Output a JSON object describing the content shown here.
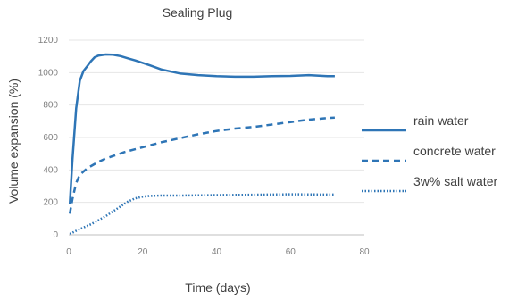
{
  "chart_data": {
    "type": "line",
    "title": "Sealing Plug",
    "xlabel": "Time (days)",
    "ylabel": "Volume expansion (%)",
    "xlim": [
      0,
      80
    ],
    "ylim": [
      0,
      1200
    ],
    "xticks": [
      "0",
      "20",
      "40",
      "60",
      "80"
    ],
    "yticks": [
      "0",
      "200",
      "400",
      "600",
      "800",
      "1000",
      "1200"
    ],
    "grid": "horizontal",
    "legend_position": "right",
    "series": [
      {
        "name": "rain water",
        "style": "solid",
        "color": "#2e75b6",
        "points": [
          [
            0.3,
            190
          ],
          [
            1,
            460
          ],
          [
            2,
            780
          ],
          [
            3,
            950
          ],
          [
            4,
            1010
          ],
          [
            5,
            1040
          ],
          [
            6,
            1070
          ],
          [
            7,
            1095
          ],
          [
            8,
            1105
          ],
          [
            10,
            1112
          ],
          [
            12,
            1110
          ],
          [
            14,
            1102
          ],
          [
            16,
            1088
          ],
          [
            18,
            1075
          ],
          [
            20,
            1060
          ],
          [
            22,
            1045
          ],
          [
            25,
            1020
          ],
          [
            30,
            995
          ],
          [
            35,
            985
          ],
          [
            40,
            978
          ],
          [
            45,
            975
          ],
          [
            50,
            975
          ],
          [
            55,
            978
          ],
          [
            60,
            980
          ],
          [
            65,
            985
          ],
          [
            70,
            978
          ],
          [
            72,
            978
          ]
        ]
      },
      {
        "name": "concrete water",
        "style": "dashed",
        "color": "#2e75b6",
        "points": [
          [
            0.3,
            130
          ],
          [
            1,
            220
          ],
          [
            2,
            320
          ],
          [
            3,
            370
          ],
          [
            5,
            410
          ],
          [
            8,
            450
          ],
          [
            10,
            470
          ],
          [
            15,
            510
          ],
          [
            20,
            540
          ],
          [
            25,
            570
          ],
          [
            30,
            595
          ],
          [
            35,
            620
          ],
          [
            40,
            640
          ],
          [
            45,
            655
          ],
          [
            50,
            665
          ],
          [
            55,
            680
          ],
          [
            60,
            695
          ],
          [
            65,
            710
          ],
          [
            70,
            720
          ],
          [
            72,
            722
          ]
        ]
      },
      {
        "name": "3w% salt water",
        "style": "dotted",
        "color": "#2e75b6",
        "points": [
          [
            0.3,
            5
          ],
          [
            2,
            25
          ],
          [
            4,
            45
          ],
          [
            6,
            65
          ],
          [
            8,
            90
          ],
          [
            10,
            115
          ],
          [
            12,
            145
          ],
          [
            14,
            175
          ],
          [
            16,
            205
          ],
          [
            18,
            225
          ],
          [
            20,
            235
          ],
          [
            22,
            240
          ],
          [
            25,
            242
          ],
          [
            30,
            242
          ],
          [
            40,
            245
          ],
          [
            50,
            247
          ],
          [
            60,
            250
          ],
          [
            70,
            248
          ],
          [
            72,
            248
          ]
        ]
      }
    ]
  }
}
